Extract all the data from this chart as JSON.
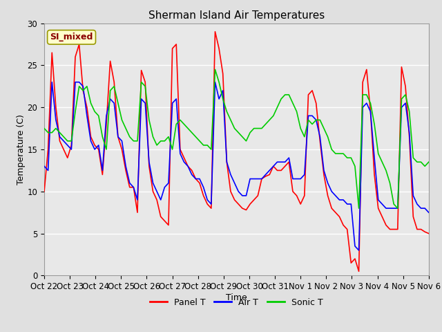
{
  "title": "Sherman Island Air Temperatures",
  "xlabel": "Time",
  "ylabel": "Temperature (C)",
  "ylim": [
    0,
    30
  ],
  "xlim": [
    0,
    15
  ],
  "bg_color": "#e0e0e0",
  "plot_bg_color": "#e8e8e8",
  "grid_color": "#ffffff",
  "tick_labels": [
    "Oct 22",
    "Oct 23",
    "Oct 24",
    "Oct 25",
    "Oct 26",
    "Oct 27",
    "Oct 28",
    "Oct 29",
    "Oct 30",
    "Oct 31",
    "Nov 1",
    "Nov 2",
    "Nov 3",
    "Nov 4",
    "Nov 5",
    "Nov 6"
  ],
  "annotation_text": "SI_mixed",
  "annotation_color": "#8b0000",
  "annotation_bg": "#ffffcc",
  "legend_labels": [
    "Panel T",
    "Air T",
    "Sonic T"
  ],
  "line_colors": [
    "#ff0000",
    "#0000ff",
    "#00cc00"
  ],
  "line_width": 1.2,
  "panel_t": [
    10.0,
    15.0,
    26.5,
    20.0,
    16.0,
    15.0,
    14.0,
    15.5,
    26.0,
    27.5,
    22.0,
    20.0,
    16.5,
    15.5,
    15.0,
    12.0,
    18.0,
    25.5,
    23.0,
    16.5,
    15.0,
    12.5,
    10.5,
    10.5,
    7.5,
    24.4,
    23.0,
    13.0,
    10.0,
    9.0,
    7.0,
    6.5,
    6.0,
    27.0,
    27.5,
    15.0,
    14.0,
    13.0,
    12.5,
    11.5,
    11.0,
    9.5,
    8.5,
    8.0,
    29.0,
    27.0,
    24.0,
    13.5,
    10.0,
    9.0,
    8.5,
    8.0,
    7.8,
    8.5,
    9.0,
    9.5,
    11.5,
    11.8,
    12.0,
    13.0,
    12.5,
    12.5,
    13.0,
    13.5,
    10.0,
    9.5,
    8.5,
    9.5,
    21.5,
    22.0,
    20.5,
    16.0,
    12.0,
    9.5,
    8.0,
    7.5,
    7.0,
    6.0,
    5.5,
    1.5,
    2.0,
    0.5,
    23.0,
    24.5,
    19.5,
    12.0,
    8.0,
    7.0,
    6.0,
    5.5,
    5.5,
    5.5,
    24.8,
    22.5,
    16.5,
    7.0,
    5.5,
    5.5,
    5.2,
    5.0
  ],
  "air_t": [
    13.0,
    12.5,
    23.0,
    18.5,
    16.5,
    16.0,
    15.5,
    15.0,
    23.0,
    23.0,
    22.5,
    19.0,
    16.0,
    15.0,
    15.5,
    12.5,
    19.0,
    21.0,
    20.5,
    16.5,
    16.0,
    13.0,
    11.0,
    10.5,
    9.0,
    21.0,
    20.5,
    13.5,
    11.0,
    10.0,
    9.0,
    10.5,
    11.0,
    20.5,
    21.0,
    14.5,
    13.5,
    13.0,
    12.0,
    11.5,
    11.5,
    10.5,
    9.0,
    8.5,
    23.0,
    21.0,
    22.0,
    13.5,
    12.0,
    11.0,
    10.0,
    9.5,
    9.5,
    11.5,
    11.5,
    11.5,
    11.5,
    12.0,
    12.5,
    13.0,
    13.5,
    13.5,
    13.5,
    14.0,
    11.5,
    11.5,
    11.5,
    12.0,
    19.0,
    19.0,
    18.5,
    16.5,
    12.5,
    11.0,
    10.0,
    9.5,
    9.0,
    9.0,
    8.5,
    8.5,
    3.5,
    3.0,
    20.0,
    20.5,
    19.5,
    14.0,
    9.0,
    8.5,
    8.0,
    8.0,
    8.0,
    8.0,
    20.0,
    20.5,
    17.0,
    9.5,
    8.5,
    8.0,
    8.0,
    7.5
  ],
  "sonic_t": [
    17.5,
    17.0,
    17.0,
    17.5,
    17.0,
    16.5,
    16.0,
    16.0,
    19.5,
    22.5,
    22.0,
    22.5,
    20.5,
    19.5,
    19.0,
    16.5,
    15.0,
    22.0,
    22.5,
    20.5,
    18.5,
    17.5,
    16.5,
    16.0,
    16.0,
    23.0,
    22.5,
    18.5,
    16.5,
    15.5,
    16.0,
    16.0,
    16.5,
    15.0,
    18.0,
    18.5,
    18.0,
    17.5,
    17.0,
    16.5,
    16.0,
    15.5,
    15.5,
    15.0,
    24.5,
    23.0,
    21.0,
    19.5,
    18.5,
    17.5,
    17.0,
    16.5,
    16.0,
    17.0,
    17.5,
    17.5,
    17.5,
    18.0,
    18.5,
    19.0,
    20.0,
    21.0,
    21.5,
    21.5,
    20.5,
    19.5,
    17.5,
    16.5,
    18.5,
    18.0,
    18.5,
    18.5,
    17.5,
    16.5,
    15.0,
    14.5,
    14.5,
    14.5,
    14.0,
    14.0,
    13.0,
    8.0,
    21.5,
    21.5,
    20.5,
    18.0,
    14.5,
    13.5,
    12.5,
    11.0,
    8.5,
    8.0,
    21.0,
    21.5,
    19.5,
    14.0,
    13.5,
    13.5,
    13.0,
    13.5
  ]
}
